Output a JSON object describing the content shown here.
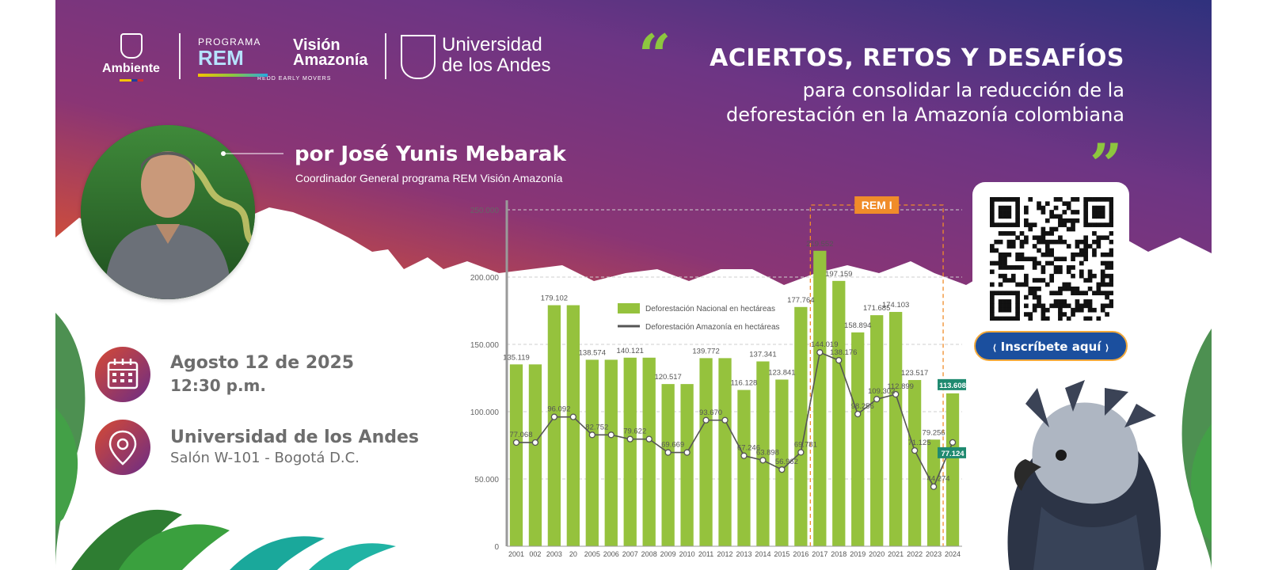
{
  "logos": {
    "ambiente": "Ambiente",
    "rem_programa": "PROGRAMA",
    "rem_name": "REM",
    "rem_vision": "Visión Amazonía",
    "rem_tagline": "REDD EARLY MOVERS",
    "andes_name": "Universidad de los Andes"
  },
  "headline": {
    "open_quote": "“",
    "title": "ACIERTOS, RETOS Y DESAFÍOS",
    "subtitle_line1": "para consolidar la reducción de la",
    "subtitle_line2": "deforestación en la Amazonía colombiana",
    "close_quote": "”"
  },
  "speaker": {
    "name": "por José Yunis Mebarak",
    "role": "Coordinador General programa REM Visión Amazonía"
  },
  "event": {
    "date": "Agosto 12 de 2025",
    "time": "12:30 p.m.",
    "venue": "Universidad de los Andes",
    "room": "Salón W-101 - Bogotá D.C."
  },
  "registration": {
    "cta": "Inscríbete aquí",
    "icons": [
      "qr-code-icon",
      "calendar-icon",
      "location-pin-icon"
    ]
  },
  "colors": {
    "accent_green": "#8dc63f",
    "bar_green": "#95c23d",
    "line_gray": "#555555",
    "rem_orange": "#f08c2a",
    "highlight_teal": "#1f8a70",
    "cta_blue": "#1b4f9e",
    "gradient_start": "#d94f2a",
    "gradient_mid": "#7a3578",
    "gradient_end": "#352f7c"
  },
  "chart_data": {
    "type": "bar",
    "annotation": "REM I",
    "annotation_range": [
      "2017",
      "2023"
    ],
    "y_ticks": [
      "250.000",
      "200.000",
      "150.000",
      "100.000",
      "50.000",
      "0"
    ],
    "ylim": [
      0,
      250000
    ],
    "categories": [
      "2001",
      "002",
      "2003",
      "20",
      "2005",
      "2006",
      "2007",
      "2008",
      "2009",
      "2010",
      "2011",
      "2012",
      "2013",
      "2014",
      "2015",
      "2016",
      "2017",
      "2018",
      "2019",
      "2020",
      "2021",
      "2022",
      "2023",
      "2024"
    ],
    "legend": [
      "Deforestación Nacional en hectáreas",
      "Deforestación Amazonía en hectáreas"
    ],
    "series": [
      {
        "name": "Deforestación Nacional en hectáreas",
        "kind": "bar",
        "values": [
          135119,
          135119,
          179102,
          179102,
          138574,
          138574,
          140121,
          140121,
          120517,
          120517,
          139772,
          139772,
          116128,
          137341,
          123841,
          177764,
          219552,
          197159,
          158894,
          171685,
          174103,
          123517,
          79256,
          113608
        ],
        "labels": [
          "135.119",
          "",
          "179.102",
          "",
          "138.574",
          "",
          "140.121",
          "",
          "120.517",
          "",
          "139.772",
          "",
          "116.128",
          "137.341",
          "123.841",
          "177.764",
          "219.552",
          "197.159",
          "158.894",
          "171.685",
          "174.103",
          "123.517",
          "79.256",
          "113.608"
        ]
      },
      {
        "name": "Deforestación Amazonía en hectáreas",
        "kind": "line",
        "values": [
          77068,
          77068,
          96092,
          96092,
          82752,
          82752,
          79622,
          79622,
          69669,
          69669,
          93670,
          93670,
          67246,
          63898,
          56962,
          69781,
          144019,
          138176,
          98256,
          109302,
          112899,
          71125,
          44274,
          77124
        ],
        "labels": [
          "77.068",
          "",
          "96.092",
          "",
          "82.752",
          "",
          "79.622",
          "",
          "69.669",
          "",
          "93.670",
          "",
          "67.246",
          "63.898",
          "56.962",
          "69.781",
          "144.019",
          "138.176",
          "98.256",
          "109.302",
          "112.899",
          "71.125",
          "44.274",
          "77.124"
        ]
      }
    ]
  }
}
